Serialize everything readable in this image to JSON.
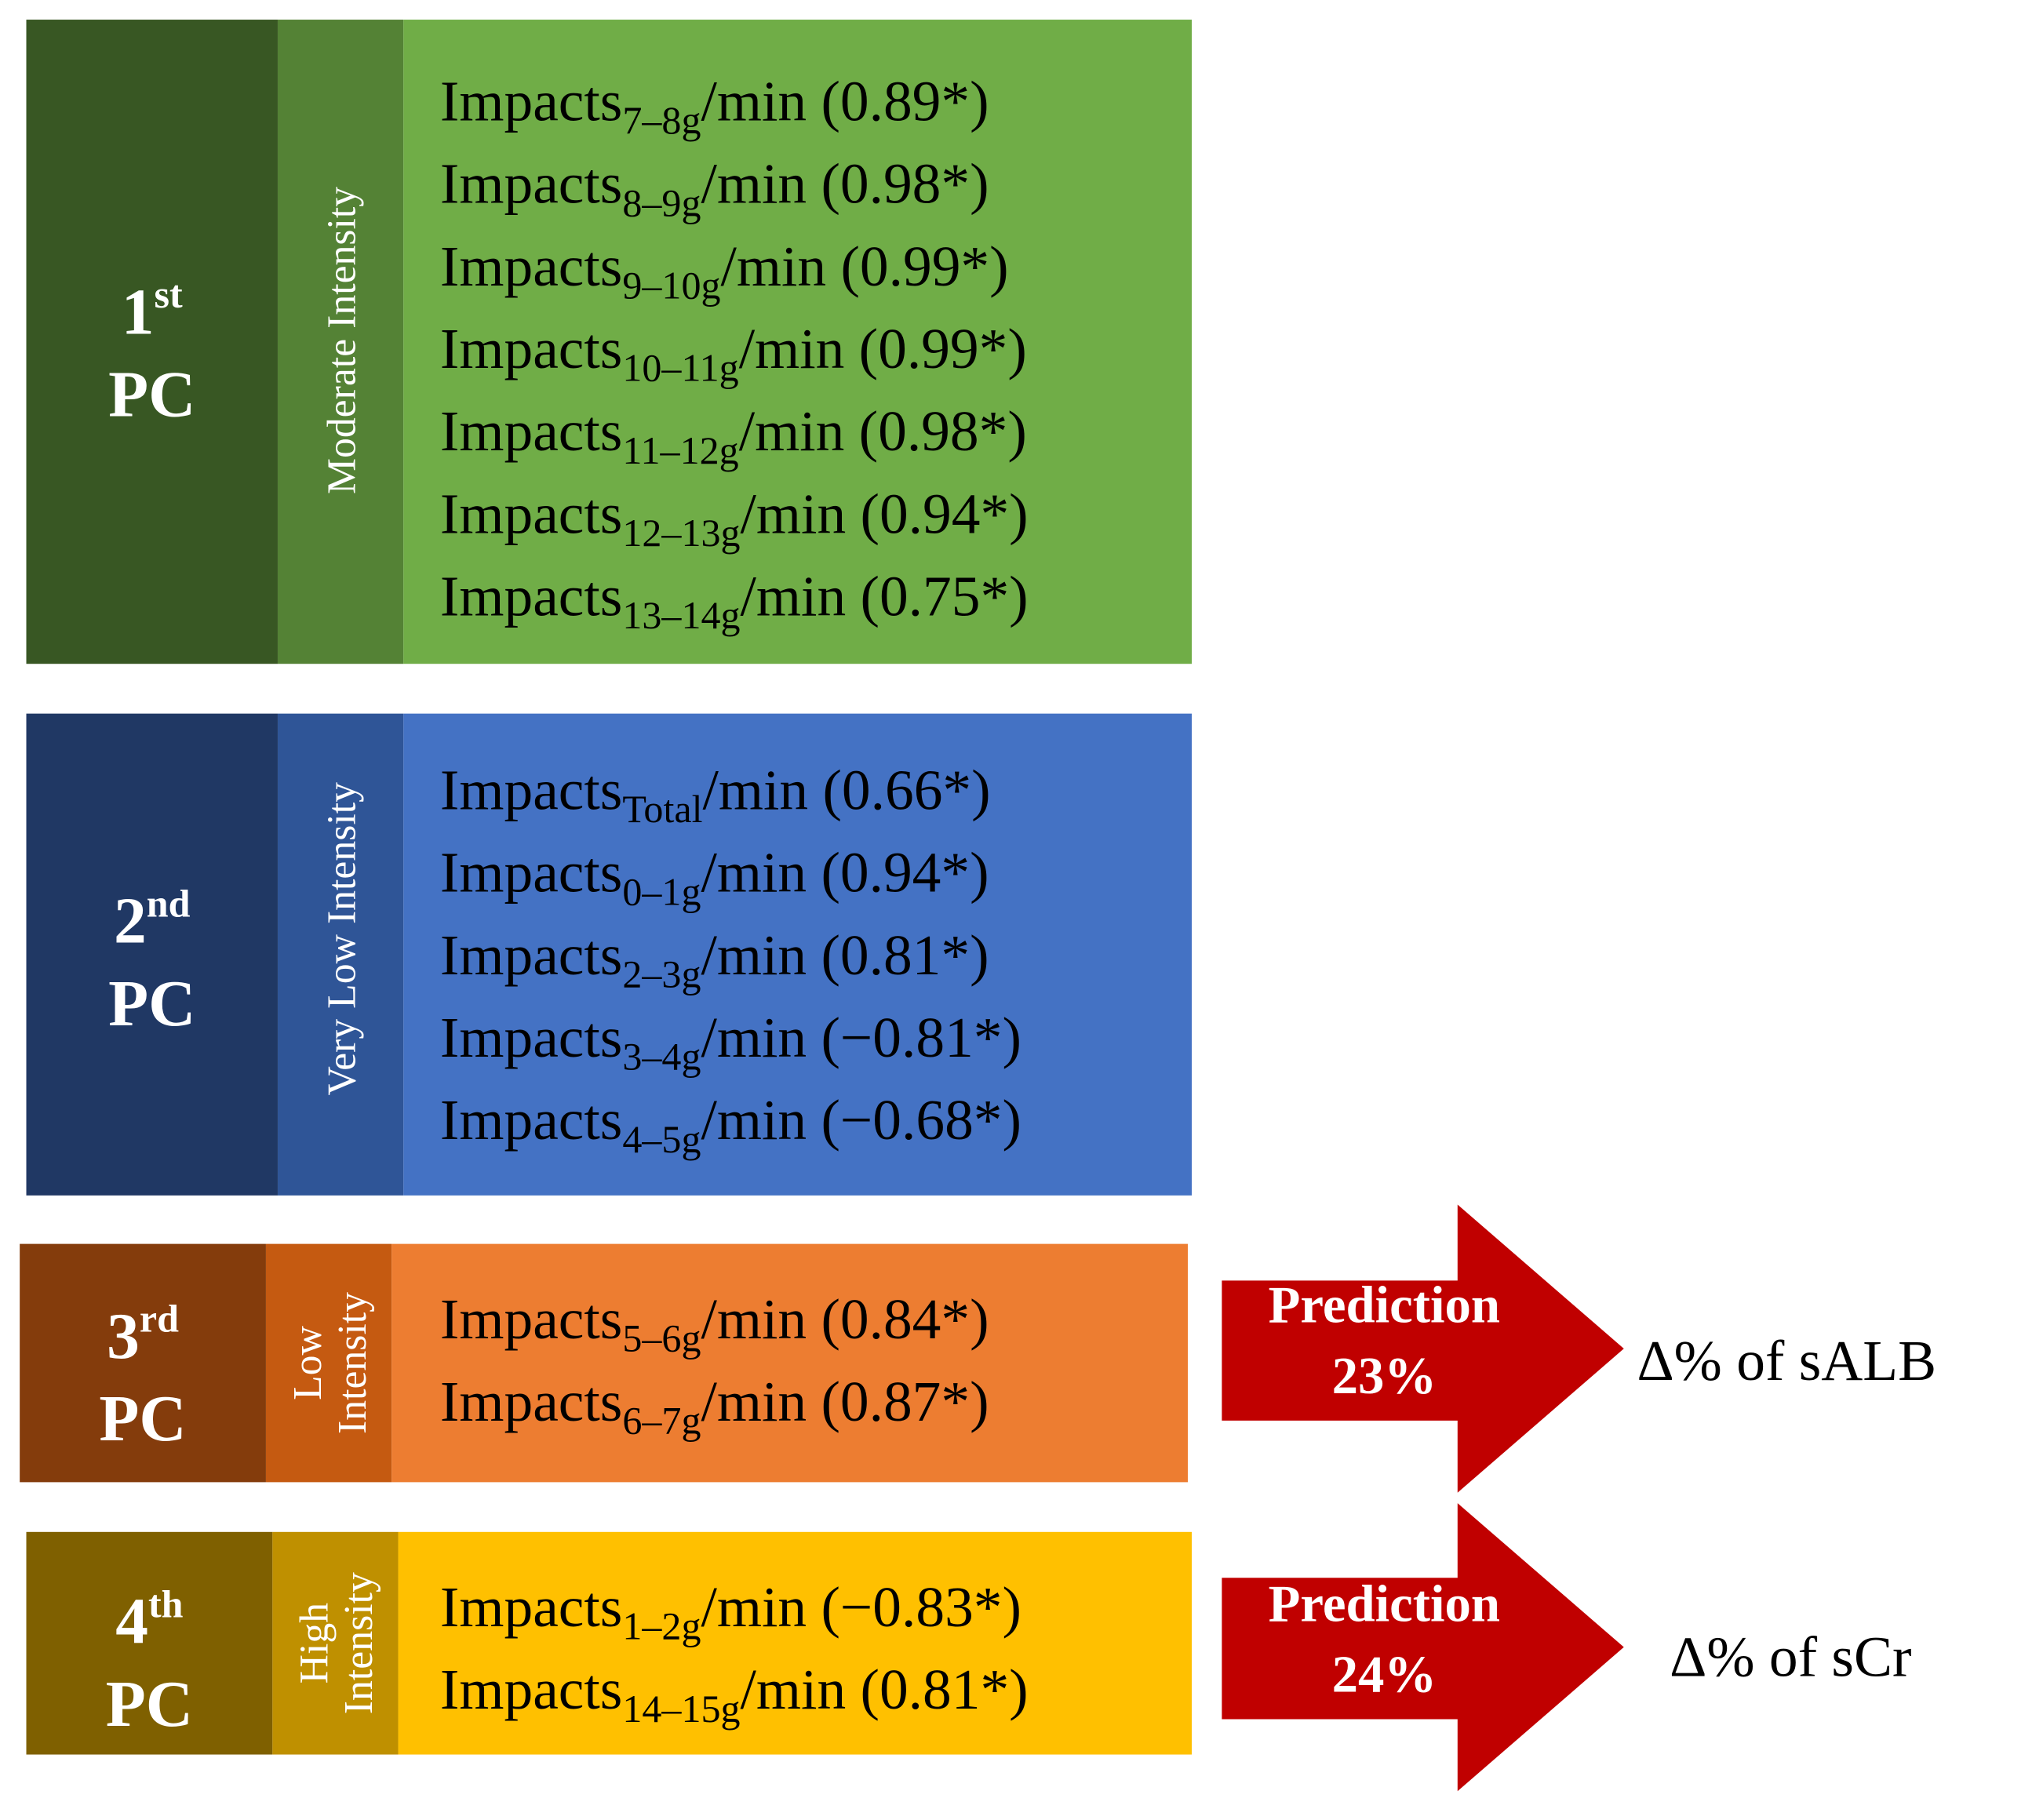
{
  "groups": [
    {
      "ordinal": "1",
      "suffix": "st",
      "pc": "PC",
      "intensity": [
        "Moderate Intensity"
      ],
      "items": [
        {
          "name": "Impacts",
          "sub": "7–8g",
          "tail": "/min (0.89*)"
        },
        {
          "name": "Impacts",
          "sub": "8–9g",
          "tail": "/min (0.98*)"
        },
        {
          "name": "Impacts",
          "sub": "9–10g",
          "tail": "/min (0.99*)"
        },
        {
          "name": "Impacts",
          "sub": "10–11g",
          "tail": "/min (0.99*)"
        },
        {
          "name": "Impacts",
          "sub": "11–12g",
          "tail": "/min (0.98*)"
        },
        {
          "name": "Impacts",
          "sub": "12–13g",
          "tail": "/min (0.94*)"
        },
        {
          "name": "Impacts",
          "sub": "13–14g",
          "tail": "/min (0.75*)"
        }
      ]
    },
    {
      "ordinal": "2",
      "suffix": "nd",
      "pc": "PC",
      "intensity": [
        "Very Low Intensity"
      ],
      "items": [
        {
          "name": "Impacts",
          "sub": "Total",
          "tail": "/min (0.66*)"
        },
        {
          "name": "Impacts",
          "sub": "0–1g",
          "tail": "/min (0.94*)"
        },
        {
          "name": "Impacts",
          "sub": "2–3g",
          "tail": "/min (0.81*)"
        },
        {
          "name": "Impacts",
          "sub": "3–4g",
          "tail": "/min (−0.81*)"
        },
        {
          "name": "Impacts",
          "sub": "4–5g",
          "tail": "/min (−0.68*)"
        }
      ]
    },
    {
      "ordinal": "3",
      "suffix": "rd",
      "pc": "PC",
      "intensity": [
        "Low",
        "Intensity"
      ],
      "items": [
        {
          "name": "Impacts",
          "sub": "5–6g",
          "tail": "/min (0.84*)"
        },
        {
          "name": "Impacts",
          "sub": "6–7g",
          "tail": "/min (0.87*)"
        }
      ]
    },
    {
      "ordinal": "4",
      "suffix": "th",
      "pc": "PC",
      "intensity": [
        "High",
        "Intensity"
      ],
      "items": [
        {
          "name": "Impacts",
          "sub": "1–2g",
          "tail": "/min (−0.83*)"
        },
        {
          "name": "Impacts",
          "sub": "14–15g",
          "tail": "/min (0.81*)"
        }
      ]
    }
  ],
  "predictions": [
    {
      "label": "Prediction",
      "value": "23%",
      "target": "Δ% of sALB"
    },
    {
      "label": "Prediction",
      "value": "24%",
      "target": "Δ% of sCr"
    }
  ]
}
